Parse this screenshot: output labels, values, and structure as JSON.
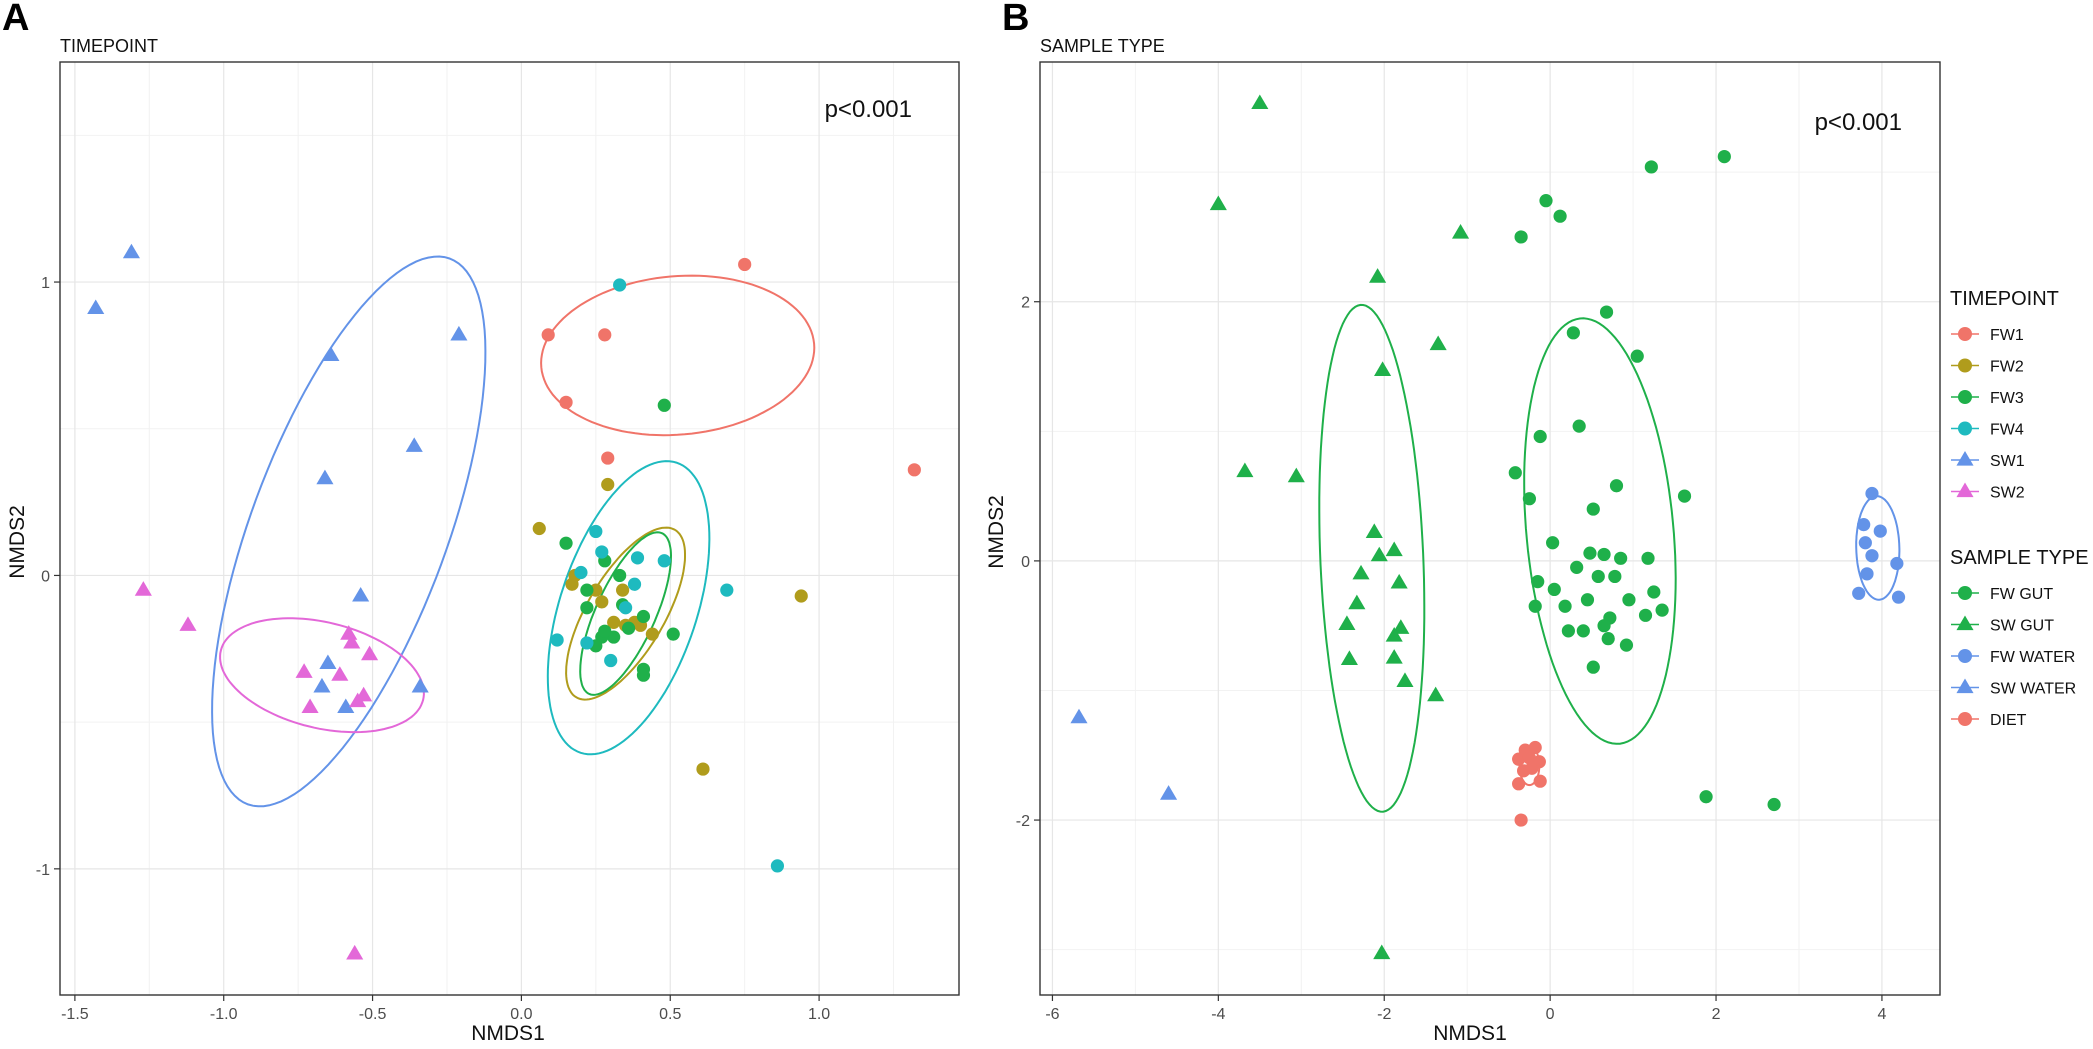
{
  "colors": {
    "FW1": "#F07469",
    "FW2": "#B09C1C",
    "FW3": "#1FB04A",
    "FW4": "#1EBABF",
    "SW1": "#6393E8",
    "SW2": "#E368D8",
    "FW GUT": "#1FB04A",
    "SW GUT": "#1FB04A",
    "FW WATER": "#6393E8",
    "SW WATER": "#6393E8",
    "DIET": "#F07469"
  },
  "chart_data": [
    {
      "type": "scatter",
      "panel": "A",
      "title": "TIMEPOINT",
      "xlabel": "NMDS1",
      "ylabel": "NMDS2",
      "annotation": "p<0.001",
      "xlim": [
        -1.55,
        1.47
      ],
      "ylim": [
        -1.43,
        1.75
      ],
      "xticks": [
        -1.5,
        -1.0,
        -0.5,
        0.0,
        0.5,
        1.0
      ],
      "xtick_labels": [
        "-1.5",
        "-1.0",
        "-0.5",
        "0.0",
        "0.5",
        "1.0"
      ],
      "yticks": [
        -1,
        0,
        1
      ],
      "ytick_labels": [
        "-1",
        "0",
        "1"
      ],
      "series": [
        {
          "name": "FW1",
          "shape": "circle",
          "points": [
            [
              0.75,
              1.06
            ],
            [
              0.09,
              0.82
            ],
            [
              0.28,
              0.82
            ],
            [
              0.15,
              0.59
            ],
            [
              0.29,
              0.4
            ],
            [
              1.32,
              0.36
            ]
          ]
        },
        {
          "name": "FW2",
          "shape": "circle",
          "points": [
            [
              0.29,
              0.31
            ],
            [
              0.06,
              0.16
            ],
            [
              0.18,
              0.0
            ],
            [
              0.17,
              -0.03
            ],
            [
              0.25,
              -0.05
            ],
            [
              0.34,
              -0.05
            ],
            [
              0.27,
              -0.09
            ],
            [
              0.31,
              -0.16
            ],
            [
              0.35,
              -0.17
            ],
            [
              0.4,
              -0.17
            ],
            [
              0.44,
              -0.2
            ],
            [
              0.38,
              -0.16
            ],
            [
              0.94,
              -0.07
            ],
            [
              0.61,
              -0.66
            ]
          ]
        },
        {
          "name": "FW3",
          "shape": "circle",
          "points": [
            [
              0.48,
              0.58
            ],
            [
              0.15,
              0.11
            ],
            [
              0.28,
              0.05
            ],
            [
              0.33,
              0.0
            ],
            [
              0.22,
              -0.05
            ],
            [
              0.34,
              -0.1
            ],
            [
              0.41,
              -0.14
            ],
            [
              0.22,
              -0.11
            ],
            [
              0.31,
              -0.21
            ],
            [
              0.27,
              -0.21
            ],
            [
              0.51,
              -0.2
            ],
            [
              0.41,
              -0.32
            ],
            [
              0.41,
              -0.34
            ],
            [
              0.36,
              -0.18
            ],
            [
              0.28,
              -0.19
            ],
            [
              0.25,
              -0.24
            ]
          ]
        },
        {
          "name": "FW4",
          "shape": "circle",
          "points": [
            [
              0.33,
              0.99
            ],
            [
              0.25,
              0.15
            ],
            [
              0.27,
              0.08
            ],
            [
              0.2,
              0.01
            ],
            [
              0.39,
              0.06
            ],
            [
              0.48,
              0.05
            ],
            [
              0.38,
              -0.03
            ],
            [
              0.35,
              -0.11
            ],
            [
              0.69,
              -0.05
            ],
            [
              0.12,
              -0.22
            ],
            [
              0.22,
              -0.23
            ],
            [
              0.3,
              -0.29
            ],
            [
              0.86,
              -0.99
            ]
          ]
        },
        {
          "name": "SW1",
          "shape": "triangle",
          "points": [
            [
              -1.31,
              1.1
            ],
            [
              -1.43,
              0.91
            ],
            [
              -0.21,
              0.82
            ],
            [
              -0.64,
              0.75
            ],
            [
              -0.36,
              0.44
            ],
            [
              -0.66,
              0.33
            ],
            [
              -0.54,
              -0.07
            ],
            [
              -0.65,
              -0.3
            ],
            [
              -0.67,
              -0.38
            ],
            [
              -0.59,
              -0.45
            ],
            [
              -0.34,
              -0.38
            ]
          ]
        },
        {
          "name": "SW2",
          "shape": "triangle",
          "points": [
            [
              -1.27,
              -0.05
            ],
            [
              -1.12,
              -0.17
            ],
            [
              -0.58,
              -0.2
            ],
            [
              -0.57,
              -0.23
            ],
            [
              -0.51,
              -0.27
            ],
            [
              -0.73,
              -0.33
            ],
            [
              -0.61,
              -0.34
            ],
            [
              -0.53,
              -0.41
            ],
            [
              -0.55,
              -0.43
            ],
            [
              -0.71,
              -0.45
            ],
            [
              -0.56,
              -1.29
            ]
          ]
        }
      ],
      "ellipses": [
        {
          "group": "FW1",
          "cx": 0.525,
          "cy": 0.75,
          "rx": 0.46,
          "ry": 0.27,
          "angle": 5
        },
        {
          "group": "FW4",
          "cx": 0.36,
          "cy": -0.11,
          "rx": 0.52,
          "ry": 0.23,
          "angle": 72
        },
        {
          "group": "FW2",
          "cx": 0.35,
          "cy": -0.13,
          "rx": 0.33,
          "ry": 0.13,
          "angle": 60
        },
        {
          "group": "FW3",
          "cx": 0.35,
          "cy": -0.13,
          "rx": 0.3,
          "ry": 0.1,
          "angle": 66
        },
        {
          "group": "SW1",
          "cx": -0.58,
          "cy": 0.15,
          "rx": 0.99,
          "ry": 0.33,
          "angle": 70
        },
        {
          "group": "SW2",
          "cx": -0.67,
          "cy": -0.34,
          "rx": 0.35,
          "ry": 0.18,
          "angle": -14
        }
      ]
    },
    {
      "type": "scatter",
      "panel": "B",
      "title": "SAMPLE TYPE",
      "xlabel": "NMDS1",
      "ylabel": "NMDS2",
      "annotation": "p<0.001",
      "xlim": [
        -6.15,
        4.7
      ],
      "ylim": [
        -3.35,
        3.85
      ],
      "xticks": [
        -6,
        -4,
        -2,
        0,
        2,
        4
      ],
      "xtick_labels": [
        "-6",
        "-4",
        "-2",
        "0",
        "2",
        "4"
      ],
      "yticks": [
        -2,
        0,
        2
      ],
      "ytick_labels": [
        "-2",
        "0",
        "2"
      ],
      "series": [
        {
          "name": "FW GUT",
          "shape": "circle",
          "points": [
            [
              2.1,
              3.12
            ],
            [
              1.22,
              3.04
            ],
            [
              -0.05,
              2.78
            ],
            [
              0.12,
              2.66
            ],
            [
              -0.35,
              2.5
            ],
            [
              0.68,
              1.92
            ],
            [
              0.28,
              1.76
            ],
            [
              1.05,
              1.58
            ],
            [
              0.35,
              1.04
            ],
            [
              -0.12,
              0.96
            ],
            [
              -0.42,
              0.68
            ],
            [
              0.8,
              0.58
            ],
            [
              -0.25,
              0.48
            ],
            [
              0.52,
              0.4
            ],
            [
              1.62,
              0.5
            ],
            [
              0.03,
              0.14
            ],
            [
              0.48,
              0.06
            ],
            [
              0.65,
              0.05
            ],
            [
              0.85,
              0.02
            ],
            [
              1.18,
              0.02
            ],
            [
              0.32,
              -0.05
            ],
            [
              0.58,
              -0.12
            ],
            [
              0.78,
              -0.12
            ],
            [
              -0.15,
              -0.16
            ],
            [
              0.05,
              -0.22
            ],
            [
              1.25,
              -0.24
            ],
            [
              0.45,
              -0.3
            ],
            [
              0.95,
              -0.3
            ],
            [
              -0.18,
              -0.35
            ],
            [
              0.18,
              -0.35
            ],
            [
              1.35,
              -0.38
            ],
            [
              0.72,
              -0.44
            ],
            [
              1.15,
              -0.42
            ],
            [
              0.22,
              -0.54
            ],
            [
              0.4,
              -0.54
            ],
            [
              0.65,
              -0.5
            ],
            [
              0.7,
              -0.6
            ],
            [
              0.92,
              -0.65
            ],
            [
              0.52,
              -0.82
            ],
            [
              1.88,
              -1.82
            ],
            [
              2.7,
              -1.88
            ]
          ]
        },
        {
          "name": "SW GUT",
          "shape": "triangle",
          "points": [
            [
              -3.5,
              3.53
            ],
            [
              -4.0,
              2.75
            ],
            [
              -1.08,
              2.53
            ],
            [
              -2.08,
              2.19
            ],
            [
              -1.35,
              1.67
            ],
            [
              -2.02,
              1.47
            ],
            [
              -3.68,
              0.69
            ],
            [
              -3.06,
              0.65
            ],
            [
              -2.12,
              0.22
            ],
            [
              -1.88,
              0.08
            ],
            [
              -2.06,
              0.04
            ],
            [
              -2.28,
              -0.1
            ],
            [
              -1.82,
              -0.17
            ],
            [
              -2.33,
              -0.33
            ],
            [
              -1.8,
              -0.52
            ],
            [
              -1.88,
              -0.58
            ],
            [
              -2.45,
              -0.49
            ],
            [
              -1.88,
              -0.75
            ],
            [
              -2.42,
              -0.76
            ],
            [
              -1.75,
              -0.93
            ],
            [
              -1.38,
              -1.04
            ],
            [
              -2.03,
              -3.03
            ]
          ]
        },
        {
          "name": "FW WATER",
          "shape": "circle",
          "points": [
            [
              3.88,
              0.52
            ],
            [
              3.78,
              0.28
            ],
            [
              3.98,
              0.23
            ],
            [
              3.8,
              0.14
            ],
            [
              3.88,
              0.04
            ],
            [
              4.18,
              -0.02
            ],
            [
              3.82,
              -0.1
            ],
            [
              3.72,
              -0.25
            ],
            [
              4.2,
              -0.28
            ]
          ]
        },
        {
          "name": "SW WATER",
          "shape": "triangle",
          "points": [
            [
              -5.68,
              -1.21
            ],
            [
              -4.6,
              -1.8
            ]
          ]
        },
        {
          "name": "DIET",
          "shape": "circle",
          "points": [
            [
              -0.3,
              -1.46
            ],
            [
              -0.18,
              -1.44
            ],
            [
              -0.38,
              -1.53
            ],
            [
              -0.25,
              -1.52
            ],
            [
              -0.13,
              -1.55
            ],
            [
              -0.32,
              -1.62
            ],
            [
              -0.22,
              -1.6
            ],
            [
              -0.38,
              -1.72
            ],
            [
              -0.12,
              -1.7
            ],
            [
              -0.35,
              -2.0
            ]
          ]
        }
      ],
      "ellipses": [
        {
          "group": "SW GUT",
          "cx": -2.15,
          "cy": 0.02,
          "rx": 0.62,
          "ry": 1.96,
          "angle": 4
        },
        {
          "group": "FW GUT",
          "cx": 0.6,
          "cy": 0.23,
          "rx": 0.88,
          "ry": 1.66,
          "angle": 10
        },
        {
          "group": "FW WATER",
          "cx": 3.95,
          "cy": 0.1,
          "rx": 0.26,
          "ry": 0.4,
          "angle": 3
        },
        {
          "group": "DIET",
          "cx": -0.25,
          "cy": -1.58,
          "rx": 0.12,
          "ry": 0.15,
          "angle": 0
        }
      ],
      "legend": {
        "position": "right",
        "groups": [
          {
            "title": "TIMEPOINT",
            "items": [
              {
                "label": "FW1",
                "shape": "circle",
                "color_key": "FW1"
              },
              {
                "label": "FW2",
                "shape": "circle",
                "color_key": "FW2"
              },
              {
                "label": "FW3",
                "shape": "circle",
                "color_key": "FW3"
              },
              {
                "label": "FW4",
                "shape": "circle",
                "color_key": "FW4"
              },
              {
                "label": "SW1",
                "shape": "triangle",
                "color_key": "SW1"
              },
              {
                "label": "SW2",
                "shape": "triangle",
                "color_key": "SW2"
              }
            ]
          },
          {
            "title": "SAMPLE TYPE",
            "items": [
              {
                "label": "FW GUT",
                "shape": "circle",
                "color_key": "FW GUT"
              },
              {
                "label": "SW GUT",
                "shape": "triangle",
                "color_key": "SW GUT"
              },
              {
                "label": "FW WATER",
                "shape": "circle",
                "color_key": "FW WATER"
              },
              {
                "label": "SW WATER",
                "shape": "triangle",
                "color_key": "SW WATER"
              },
              {
                "label": "DIET",
                "shape": "circle",
                "color_key": "DIET"
              }
            ]
          }
        ]
      }
    }
  ]
}
